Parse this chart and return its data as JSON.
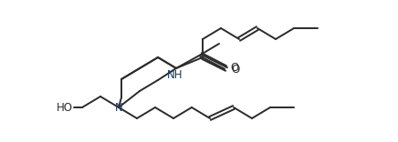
{
  "bg_color": "#ffffff",
  "line_color": "#2b2b2b",
  "line_width": 1.4,
  "font_size": 8.5,
  "nh_label": "NH",
  "n_label": "N",
  "o_label": "O",
  "ho_label": "HO",
  "label_color": "#1a3a5c"
}
